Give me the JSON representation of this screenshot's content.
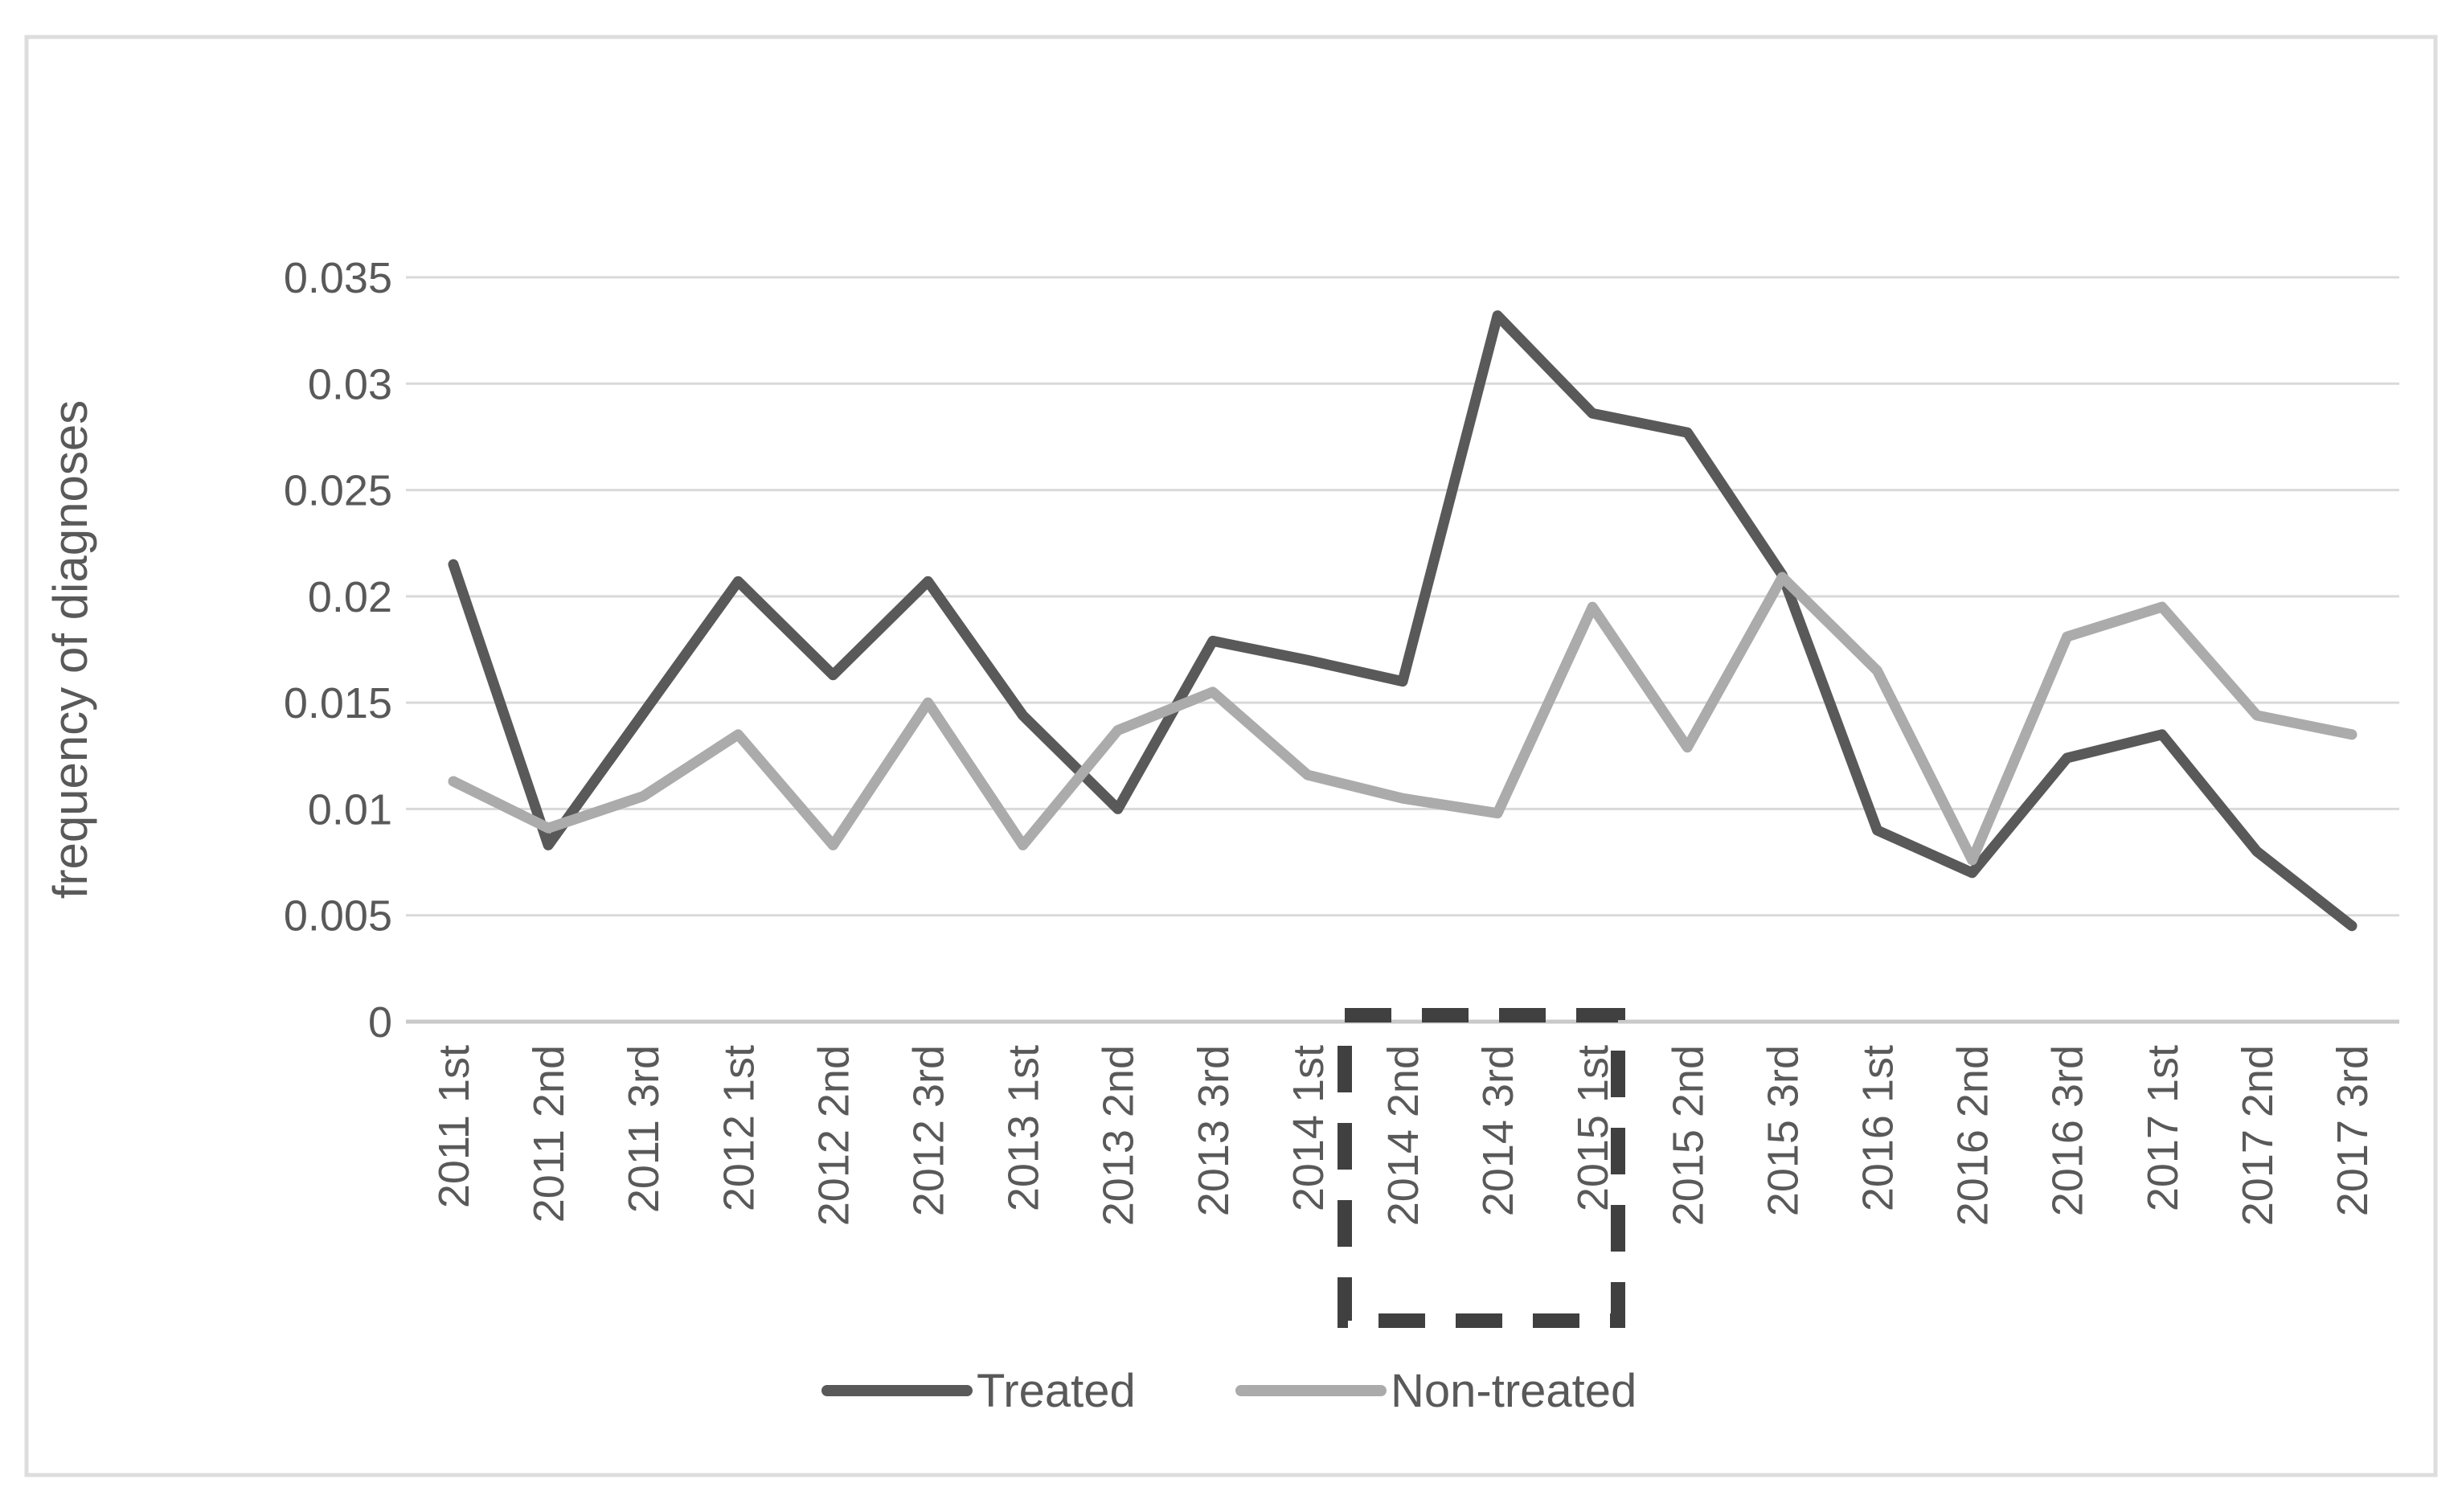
{
  "figure": {
    "background": "#ffffff",
    "border_color": "#dddddd"
  },
  "chart_data": {
    "type": "line",
    "title": "",
    "xlabel": "",
    "ylabel": "frequency of diagnoses",
    "categories": [
      "2011 1st",
      "2011 2nd",
      "2011 3rd",
      "2012 1st",
      "2012 2nd",
      "2012 3rd",
      "2013 1st",
      "2013 2nd",
      "2013 3rd",
      "2014 1st",
      "2014 2nd",
      "2014 3rd",
      "2015 1st",
      "2015 2nd",
      "2015 3rd",
      "2016 1st",
      "2016 2nd",
      "2016 3rd",
      "2017 1st",
      "2017 2nd",
      "2017 3rd"
    ],
    "series": [
      {
        "name": "Treated",
        "color": "#595959",
        "values": [
          0.0215,
          0.0083,
          0.0145,
          0.0207,
          0.0163,
          0.0207,
          0.0144,
          0.01,
          0.0179,
          0.017,
          0.016,
          0.0332,
          0.0286,
          0.0277,
          0.021,
          0.009,
          0.007,
          0.0124,
          0.0135,
          0.008,
          0.0045
        ]
      },
      {
        "name": "Non-treated",
        "color": "#ababab",
        "values": [
          0.0113,
          0.0091,
          0.0106,
          0.0135,
          0.0083,
          0.015,
          0.0083,
          0.0137,
          0.0155,
          0.0116,
          0.0105,
          0.0098,
          0.0195,
          0.0129,
          0.0209,
          0.0165,
          0.0076,
          0.0181,
          0.0195,
          0.0144,
          0.0135
        ]
      }
    ],
    "ylim": [
      0,
      0.035
    ],
    "ytick_step": 0.005,
    "ytick_labels": [
      "0",
      "0.005",
      "0.01",
      "0.015",
      "0.02",
      "0.025",
      "0.03",
      "0.035"
    ],
    "grid": true,
    "gridline_color": "#d9d9d9",
    "axis_line_color": "#c9c9c9",
    "tick_label_color": "#595959",
    "legend_position": "bottom",
    "annotation": {
      "type": "dashed-rectangle",
      "color": "#404040",
      "over_categories": [
        "2014 2nd",
        "2014 3rd",
        "2015 1st"
      ]
    }
  },
  "legend": {
    "items": [
      {
        "label": "Treated",
        "color": "#595959"
      },
      {
        "label": "Non-treated",
        "color": "#ababab"
      }
    ]
  }
}
